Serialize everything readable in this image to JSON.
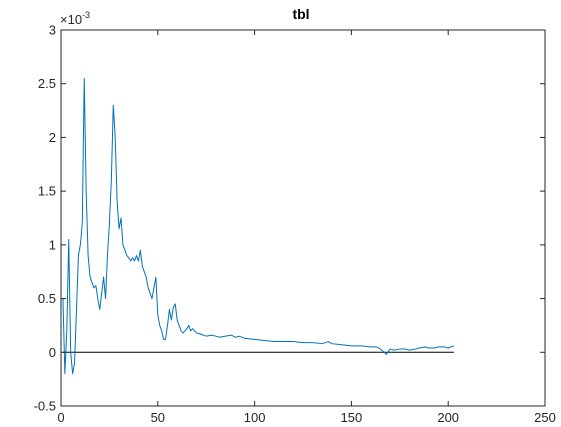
{
  "chart_data": {
    "type": "line",
    "title": "tbl",
    "xlabel": "",
    "ylabel": "",
    "xlim": [
      0,
      250
    ],
    "ylim": [
      -0.0005,
      0.003
    ],
    "y_exponent_base": "×10",
    "y_exponent_power": "-3",
    "xticks": [
      0,
      50,
      100,
      150,
      200,
      250
    ],
    "xtick_labels": [
      "0",
      "50",
      "100",
      "150",
      "200",
      "250"
    ],
    "yticks": [
      -0.5,
      0,
      0.5,
      1,
      1.5,
      2,
      2.5,
      3
    ],
    "ytick_labels": [
      "-0.5",
      "0",
      "0.5",
      "1",
      "1.5",
      "2",
      "2.5",
      "3"
    ],
    "grid": false,
    "legend": "none",
    "colors": {
      "series": "#0072bd",
      "zero_line": "#000000",
      "axes": "#262626"
    },
    "reference_line": {
      "y": 0,
      "x_range": [
        1,
        203
      ]
    },
    "series": [
      {
        "x": [
          1,
          2,
          3,
          4,
          5,
          6,
          7,
          8,
          9,
          10,
          11,
          12,
          13,
          14,
          15,
          16,
          17,
          18,
          19,
          20,
          21,
          22,
          23,
          24,
          25,
          26,
          27,
          28,
          29,
          30,
          31,
          32,
          33,
          34,
          35,
          36,
          37,
          38,
          39,
          40,
          41,
          42,
          43,
          44,
          45,
          46,
          47,
          48,
          49,
          50,
          51,
          52,
          53,
          54,
          55,
          56,
          57,
          58,
          59,
          60,
          61,
          62,
          63,
          64,
          65,
          66,
          67,
          68,
          69,
          70,
          72,
          75,
          78,
          80,
          82,
          85,
          88,
          90,
          92,
          95,
          100,
          105,
          110,
          115,
          120,
          125,
          130,
          135,
          138,
          140,
          145,
          150,
          155,
          160,
          163,
          165,
          167,
          168,
          170,
          172,
          175,
          178,
          180,
          183,
          185,
          188,
          190,
          193,
          195,
          198,
          200,
          203
        ],
        "y": [
          0.0005,
          -0.0002,
          0.0002,
          0.00105,
          0.0,
          -0.0002,
          -0.0001,
          0.0004,
          0.0009,
          0.001,
          0.0012,
          0.00255,
          0.0015,
          0.0009,
          0.0007,
          0.00065,
          0.0006,
          0.00062,
          0.0005,
          0.0004,
          0.00055,
          0.0007,
          0.0005,
          0.0009,
          0.0012,
          0.0016,
          0.0023,
          0.002,
          0.0014,
          0.00115,
          0.00125,
          0.001,
          0.00095,
          0.0009,
          0.00088,
          0.00085,
          0.00088,
          0.00085,
          0.0009,
          0.00085,
          0.00095,
          0.0008,
          0.00075,
          0.0007,
          0.0006,
          0.00055,
          0.0005,
          0.0006,
          0.0007,
          0.00035,
          0.00025,
          0.0002,
          0.00012,
          0.00012,
          0.00025,
          0.0004,
          0.0003,
          0.00042,
          0.00045,
          0.0003,
          0.00025,
          0.0002,
          0.00018,
          0.0002,
          0.00022,
          0.00025,
          0.0002,
          0.00022,
          0.0002,
          0.00018,
          0.00017,
          0.00015,
          0.00016,
          0.00015,
          0.00014,
          0.00015,
          0.00016,
          0.00014,
          0.00015,
          0.00013,
          0.00012,
          0.00011,
          0.0001,
          0.0001,
          0.0001,
          9e-05,
          9e-05,
          8e-05,
          0.0001,
          8e-05,
          7e-05,
          6e-05,
          6e-05,
          5e-05,
          5e-05,
          3e-05,
          0.0,
          -2e-05,
          3e-05,
          2e-05,
          3e-05,
          3e-05,
          2e-05,
          3e-05,
          4e-05,
          5e-05,
          4e-05,
          4e-05,
          5e-05,
          5e-05,
          4e-05,
          6e-05
        ]
      }
    ]
  }
}
